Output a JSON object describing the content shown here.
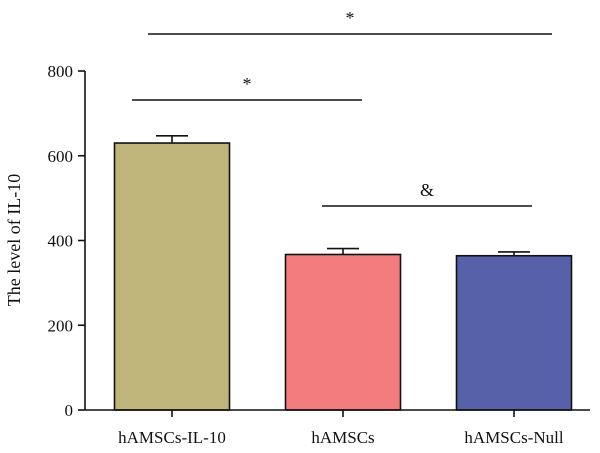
{
  "chart_data": {
    "type": "bar",
    "title": "",
    "xlabel": "",
    "ylabel": "The level of IL-10",
    "ylim": [
      0,
      800
    ],
    "yticks": [
      0,
      200,
      400,
      600,
      800
    ],
    "categories": [
      "hAMSCs-IL-10",
      "hAMSCs",
      "hAMSCs-Null"
    ],
    "values": [
      630,
      367,
      364
    ],
    "error": [
      17,
      14,
      9
    ],
    "colors": [
      "#C0B57A",
      "#F37C7E",
      "#5661AA"
    ],
    "grid": false,
    "legend": "none",
    "annotations": [
      {
        "label": "*",
        "from": "hAMSCs-IL-10",
        "to": "hAMSCs-Null",
        "y": 880
      },
      {
        "label": "*",
        "from": "hAMSCs-IL-10",
        "to": "hAMSCs",
        "y": 730
      },
      {
        "label": "&",
        "from": "hAMSCs",
        "to": "hAMSCs-Null",
        "y": 480
      }
    ]
  }
}
